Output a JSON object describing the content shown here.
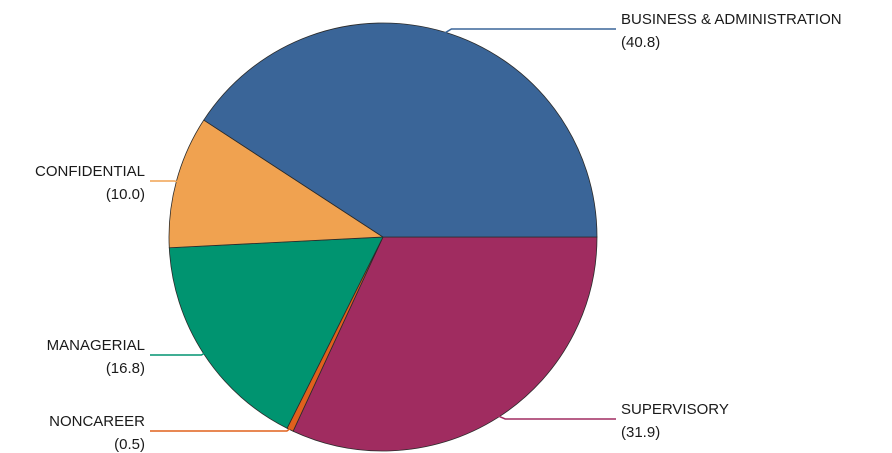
{
  "chart_data": {
    "type": "pie",
    "title": "",
    "slices": [
      {
        "label": "SUPERVISORY",
        "value": 31.9,
        "value_label": "(31.9)",
        "color": "#A02C60"
      },
      {
        "label": "NONCAREER",
        "value": 0.5,
        "value_label": "(0.5)",
        "color": "#E0601C"
      },
      {
        "label": "MANAGERIAL",
        "value": 16.8,
        "value_label": "(16.8)",
        "color": "#009470"
      },
      {
        "label": "CONFIDENTIAL",
        "value": 10.0,
        "value_label": "(10.0)",
        "color": "#F0A250"
      },
      {
        "label": "BUSINESS & ADMINISTRATION",
        "value": 40.8,
        "value_label": "(40.8)",
        "color": "#3A6598"
      }
    ],
    "start_angle_deg": 0,
    "direction": "clockwise",
    "legend": "none"
  }
}
